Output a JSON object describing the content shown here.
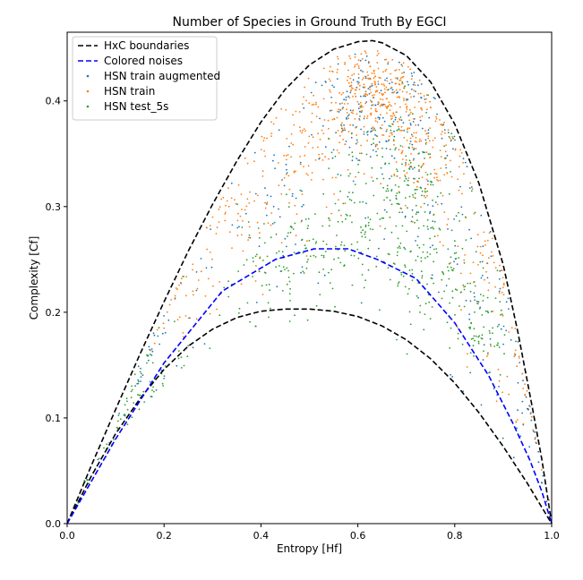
{
  "chart_data": {
    "type": "scatter",
    "title": "Number of Species in Ground Truth By EGCI",
    "xlabel": "Entropy [Hf]",
    "ylabel": "Complexity [Cf]",
    "xlim": [
      0.0,
      1.0
    ],
    "ylim": [
      0.0,
      0.465
    ],
    "xticks": [
      "0.0",
      "0.2",
      "0.4",
      "0.6",
      "0.8",
      "1.0"
    ],
    "xtick_values": [
      0.0,
      0.2,
      0.4,
      0.6,
      0.8,
      1.0
    ],
    "yticks": [
      "0.0",
      "0.1",
      "0.2",
      "0.3",
      "0.4"
    ],
    "ytick_values": [
      0.0,
      0.1,
      0.2,
      0.3,
      0.4
    ],
    "grid": false,
    "legend_position": "top-left",
    "series": [
      {
        "name": "HxC boundaries",
        "kind": "line",
        "style": "dashed",
        "color": "#000000",
        "segments": [
          {
            "x": [
              0.0,
              0.05,
              0.1,
              0.15,
              0.2,
              0.25,
              0.3,
              0.35,
              0.4,
              0.45,
              0.5,
              0.55,
              0.6,
              0.63,
              0.65,
              0.7,
              0.75,
              0.8,
              0.85,
              0.9,
              0.93,
              0.96,
              0.98,
              1.0
            ],
            "y": [
              0.0,
              0.055,
              0.108,
              0.16,
              0.21,
              0.258,
              0.302,
              0.343,
              0.38,
              0.411,
              0.434,
              0.449,
              0.456,
              0.457,
              0.455,
              0.443,
              0.418,
              0.378,
              0.322,
              0.245,
              0.182,
              0.11,
              0.06,
              0.0
            ]
          },
          {
            "x": [
              0.0,
              0.05,
              0.1,
              0.15,
              0.2,
              0.25,
              0.3,
              0.35,
              0.4,
              0.45,
              0.48,
              0.5,
              0.55,
              0.6,
              0.65,
              0.7,
              0.75,
              0.8,
              0.85,
              0.9,
              0.95,
              1.0
            ],
            "y": [
              0.0,
              0.045,
              0.085,
              0.118,
              0.146,
              0.168,
              0.184,
              0.195,
              0.201,
              0.203,
              0.203,
              0.203,
              0.201,
              0.196,
              0.187,
              0.174,
              0.156,
              0.133,
              0.105,
              0.073,
              0.038,
              0.0
            ]
          }
        ]
      },
      {
        "name": "Colored noises",
        "kind": "line",
        "style": "dashed",
        "color": "#0000ff",
        "x": [
          0.0,
          0.1,
          0.2,
          0.32,
          0.43,
          0.51,
          0.58,
          0.64,
          0.72,
          0.8,
          0.87,
          0.92,
          0.955,
          0.98,
          1.0
        ],
        "y": [
          0.0,
          0.08,
          0.152,
          0.22,
          0.25,
          0.26,
          0.26,
          0.25,
          0.232,
          0.19,
          0.14,
          0.095,
          0.06,
          0.03,
          0.0
        ]
      },
      {
        "name": "HSN train  augmented",
        "kind": "scatter",
        "color": "#1f77b4",
        "clusters": [
          {
            "n": 170,
            "cx": 0.63,
            "cy": 0.395,
            "sx": 0.06,
            "sy": 0.03
          },
          {
            "n": 90,
            "cx": 0.74,
            "cy": 0.33,
            "sx": 0.06,
            "sy": 0.045
          },
          {
            "n": 55,
            "cx": 0.45,
            "cy": 0.31,
            "sx": 0.07,
            "sy": 0.04
          },
          {
            "n": 55,
            "cx": 0.87,
            "cy": 0.21,
            "sx": 0.04,
            "sy": 0.06
          },
          {
            "n": 45,
            "cx": 0.2,
            "cy": 0.19,
            "sx": 0.07,
            "sy": 0.05
          },
          {
            "n": 30,
            "cx": 0.95,
            "cy": 0.1,
            "sx": 0.02,
            "sy": 0.04
          }
        ]
      },
      {
        "name": "HSN train",
        "kind": "scatter",
        "color": "#ff7f0e",
        "clusters": [
          {
            "n": 320,
            "cx": 0.63,
            "cy": 0.402,
            "sx": 0.055,
            "sy": 0.025
          },
          {
            "n": 150,
            "cx": 0.73,
            "cy": 0.355,
            "sx": 0.05,
            "sy": 0.035
          },
          {
            "n": 110,
            "cx": 0.48,
            "cy": 0.35,
            "sx": 0.06,
            "sy": 0.035
          },
          {
            "n": 55,
            "cx": 0.36,
            "cy": 0.29,
            "sx": 0.04,
            "sy": 0.03
          },
          {
            "n": 40,
            "cx": 0.25,
            "cy": 0.22,
            "sx": 0.04,
            "sy": 0.03
          },
          {
            "n": 60,
            "cx": 0.86,
            "cy": 0.25,
            "sx": 0.04,
            "sy": 0.045
          },
          {
            "n": 30,
            "cx": 0.93,
            "cy": 0.16,
            "sx": 0.025,
            "sy": 0.035
          }
        ]
      },
      {
        "name": "HSN test_5s",
        "kind": "scatter",
        "color": "#2ca02c",
        "clusters": [
          {
            "n": 160,
            "cx": 0.68,
            "cy": 0.33,
            "sx": 0.06,
            "sy": 0.035
          },
          {
            "n": 130,
            "cx": 0.57,
            "cy": 0.27,
            "sx": 0.08,
            "sy": 0.03
          },
          {
            "n": 110,
            "cx": 0.76,
            "cy": 0.24,
            "sx": 0.05,
            "sy": 0.03
          },
          {
            "n": 70,
            "cx": 0.42,
            "cy": 0.24,
            "sx": 0.06,
            "sy": 0.025
          },
          {
            "n": 70,
            "cx": 0.85,
            "cy": 0.19,
            "sx": 0.03,
            "sy": 0.02
          },
          {
            "n": 70,
            "cx": 0.15,
            "cy": 0.14,
            "sx": 0.06,
            "sy": 0.04
          }
        ]
      }
    ]
  },
  "legend": {
    "items": [
      {
        "label": "HxC boundaries",
        "marker": "dashed-line",
        "color": "#000000"
      },
      {
        "label": "Colored noises",
        "marker": "dashed-line",
        "color": "#0000ff"
      },
      {
        "label": "HSN train  augmented",
        "marker": "dot",
        "color": "#1f77b4"
      },
      {
        "label": "HSN train",
        "marker": "dot",
        "color": "#ff7f0e"
      },
      {
        "label": "HSN test_5s",
        "marker": "dot",
        "color": "#2ca02c"
      }
    ]
  }
}
